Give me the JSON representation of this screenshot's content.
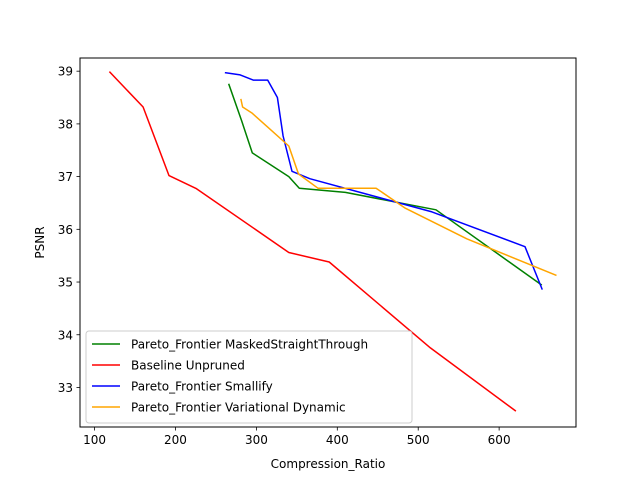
{
  "chart_data": {
    "type": "line",
    "xlabel": "Compression_Ratio",
    "ylabel": "PSNR",
    "xlim": [
      82,
      695
    ],
    "ylim": [
      32.25,
      39.25
    ],
    "xticks": [
      100,
      200,
      300,
      400,
      500,
      600
    ],
    "yticks": [
      33,
      34,
      35,
      36,
      37,
      38,
      39
    ],
    "grid": false,
    "legend_position": "lower-left",
    "series": [
      {
        "name": "Pareto_Frontier MaskedStraightThrough",
        "color": "#008000",
        "x": [
          266,
          282,
          295,
          340,
          353,
          410,
          522,
          652
        ],
        "y": [
          38.75,
          38.05,
          37.45,
          37.0,
          36.78,
          36.7,
          36.37,
          34.95
        ]
      },
      {
        "name": "Baseline Unpruned",
        "color": "#ff0000",
        "x": [
          119,
          160,
          192,
          226,
          340,
          390,
          515,
          620
        ],
        "y": [
          38.98,
          38.32,
          37.02,
          36.77,
          35.56,
          35.38,
          33.75,
          32.56
        ]
      },
      {
        "name": "Pareto_Frontier Smallify",
        "color": "#0000ff",
        "x": [
          262,
          280,
          296,
          314,
          326,
          333,
          344,
          366,
          517,
          632,
          653
        ],
        "y": [
          38.97,
          38.93,
          38.83,
          38.83,
          38.5,
          37.77,
          37.1,
          36.96,
          36.33,
          35.67,
          34.87
        ]
      },
      {
        "name": "Pareto_Frontier Variational Dynamic",
        "color": "#ffa500",
        "x": [
          281,
          283,
          295,
          340,
          352,
          376,
          448,
          484,
          560,
          670
        ],
        "y": [
          38.46,
          38.32,
          38.2,
          37.58,
          37.05,
          36.78,
          36.78,
          36.4,
          35.82,
          35.13
        ]
      }
    ]
  }
}
